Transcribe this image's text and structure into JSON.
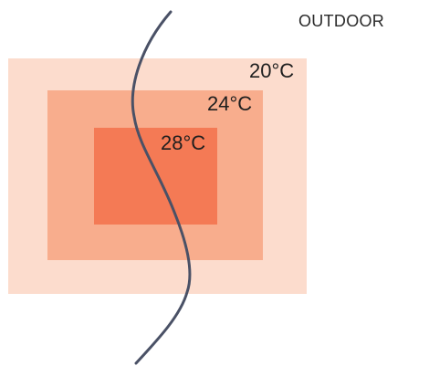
{
  "outdoor_label": "OUTDOOR",
  "zones": [
    {
      "label": "20°C",
      "color": "#fcdccd"
    },
    {
      "label": "24°C",
      "color": "#f8ad8d"
    },
    {
      "label": "28°C",
      "color": "#f47a55"
    }
  ],
  "boundary_color": "#4a5166"
}
